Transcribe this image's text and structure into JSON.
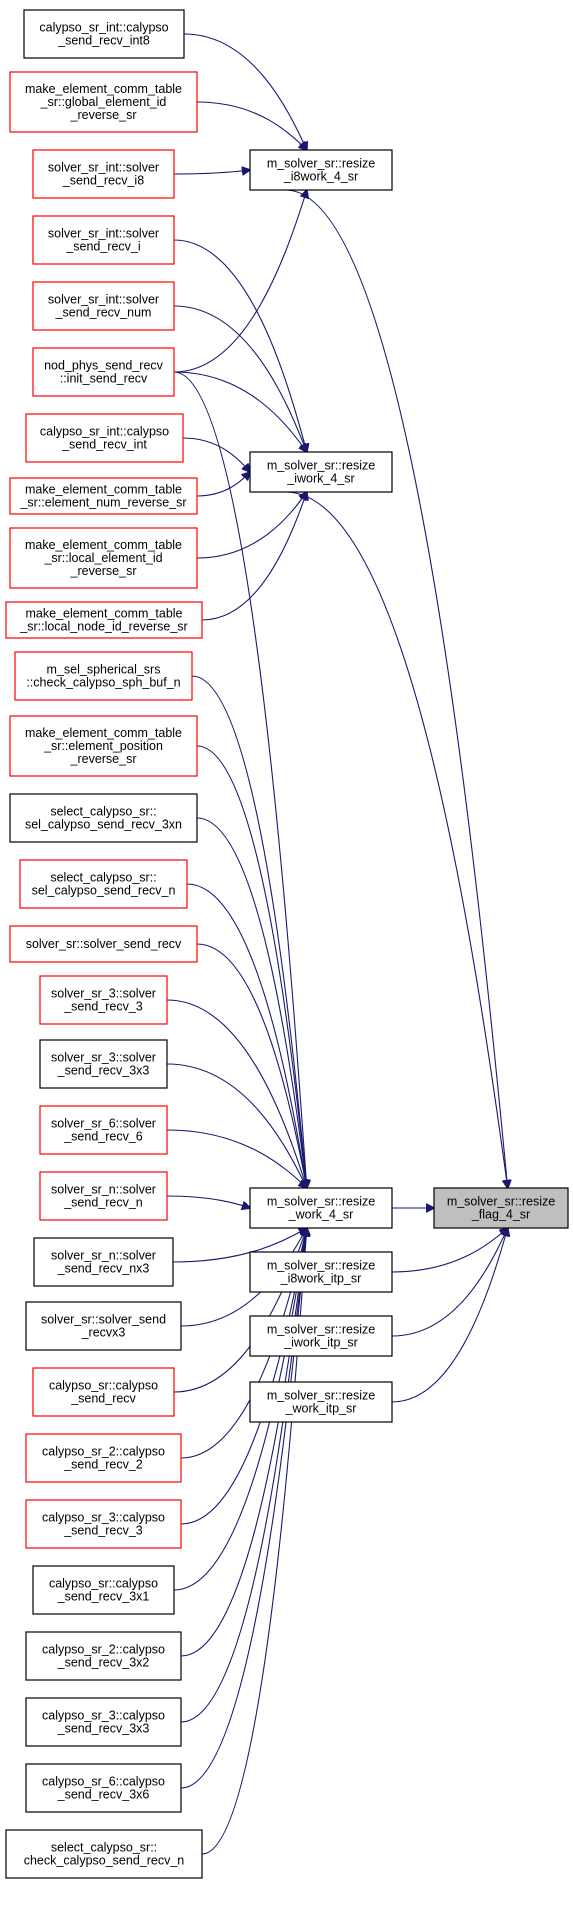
{
  "colors": {
    "edge": "#191970",
    "box_border_incomplete": "#ff0000",
    "box_border_complete": "#000000",
    "box_fill": "#ffffff",
    "target_fill": "#bfbfbf"
  },
  "nodes": [
    {
      "id": "n1",
      "lines": [
        "calypso_sr_int::calypso",
        "_send_recv_int8"
      ],
      "border": "black"
    },
    {
      "id": "n2",
      "lines": [
        "make_element_comm_table",
        "_sr::global_element_id",
        "_reverse_sr"
      ],
      "border": "red"
    },
    {
      "id": "n3",
      "lines": [
        "solver_sr_int::solver",
        "_send_recv_i8"
      ],
      "border": "red"
    },
    {
      "id": "n4",
      "lines": [
        "solver_sr_int::solver",
        "_send_recv_i"
      ],
      "border": "red"
    },
    {
      "id": "n5",
      "lines": [
        "solver_sr_int::solver",
        "_send_recv_num"
      ],
      "border": "red"
    },
    {
      "id": "n6",
      "lines": [
        "nod_phys_send_recv",
        "::init_send_recv"
      ],
      "border": "red"
    },
    {
      "id": "n7",
      "lines": [
        "calypso_sr_int::calypso",
        "_send_recv_int"
      ],
      "border": "red"
    },
    {
      "id": "n8",
      "lines": [
        "make_element_comm_table",
        "_sr::element_num_reverse_sr"
      ],
      "border": "red"
    },
    {
      "id": "n9",
      "lines": [
        "make_element_comm_table",
        "_sr::local_element_id",
        "_reverse_sr"
      ],
      "border": "red"
    },
    {
      "id": "n10",
      "lines": [
        "make_element_comm_table",
        "_sr::local_node_id_reverse_sr"
      ],
      "border": "red"
    },
    {
      "id": "n11",
      "lines": [
        "m_sel_spherical_srs",
        "::check_calypso_sph_buf_n"
      ],
      "border": "red"
    },
    {
      "id": "n12",
      "lines": [
        "make_element_comm_table",
        "_sr::element_position",
        "_reverse_sr"
      ],
      "border": "red"
    },
    {
      "id": "n13",
      "lines": [
        "select_calypso_sr::",
        "sel_calypso_send_recv_3xn"
      ],
      "border": "black"
    },
    {
      "id": "n14",
      "lines": [
        "select_calypso_sr::",
        "sel_calypso_send_recv_n"
      ],
      "border": "red"
    },
    {
      "id": "n15",
      "lines": [
        "solver_sr::solver_send_recv"
      ],
      "border": "red"
    },
    {
      "id": "n16",
      "lines": [
        "solver_sr_3::solver",
        "_send_recv_3"
      ],
      "border": "red"
    },
    {
      "id": "n17",
      "lines": [
        "solver_sr_3::solver",
        "_send_recv_3x3"
      ],
      "border": "black"
    },
    {
      "id": "n18",
      "lines": [
        "solver_sr_6::solver",
        "_send_recv_6"
      ],
      "border": "red"
    },
    {
      "id": "n19",
      "lines": [
        "solver_sr_n::solver",
        "_send_recv_n"
      ],
      "border": "red"
    },
    {
      "id": "n20",
      "lines": [
        "solver_sr_n::solver",
        "_send_recv_nx3"
      ],
      "border": "black"
    },
    {
      "id": "n21",
      "lines": [
        "solver_sr::solver_send",
        "_recvx3"
      ],
      "border": "black"
    },
    {
      "id": "n22",
      "lines": [
        "calypso_sr::calypso",
        "_send_recv"
      ],
      "border": "red"
    },
    {
      "id": "n23",
      "lines": [
        "calypso_sr_2::calypso",
        "_send_recv_2"
      ],
      "border": "red"
    },
    {
      "id": "n24",
      "lines": [
        "calypso_sr_3::calypso",
        "_send_recv_3"
      ],
      "border": "red"
    },
    {
      "id": "n25",
      "lines": [
        "calypso_sr::calypso",
        "_send_recv_3x1"
      ],
      "border": "black"
    },
    {
      "id": "n26",
      "lines": [
        "calypso_sr_2::calypso",
        "_send_recv_3x2"
      ],
      "border": "black"
    },
    {
      "id": "n27",
      "lines": [
        "calypso_sr_3::calypso",
        "_send_recv_3x3"
      ],
      "border": "black"
    },
    {
      "id": "n28",
      "lines": [
        "calypso_sr_6::calypso",
        "_send_recv_3x6"
      ],
      "border": "black"
    },
    {
      "id": "n29",
      "lines": [
        "select_calypso_sr::",
        "check_calypso_send_recv_n"
      ],
      "border": "black"
    },
    {
      "id": "m1",
      "lines": [
        "m_solver_sr::resize",
        "_i8work_4_sr"
      ],
      "border": "black"
    },
    {
      "id": "m2",
      "lines": [
        "m_solver_sr::resize",
        "_iwork_4_sr"
      ],
      "border": "black"
    },
    {
      "id": "m3",
      "lines": [
        "m_solver_sr::resize",
        "_work_4_sr"
      ],
      "border": "black"
    },
    {
      "id": "m4",
      "lines": [
        "m_solver_sr::resize",
        "_i8work_itp_sr"
      ],
      "border": "black"
    },
    {
      "id": "m5",
      "lines": [
        "m_solver_sr::resize",
        "_iwork_itp_sr"
      ],
      "border": "black"
    },
    {
      "id": "m6",
      "lines": [
        "m_solver_sr::resize",
        "_work_itp_sr"
      ],
      "border": "black"
    },
    {
      "id": "t",
      "lines": [
        "m_solver_sr::resize",
        "_flag_4_sr"
      ],
      "border": "black",
      "highlight": true
    }
  ],
  "edges": [
    {
      "from": "n1",
      "to": "m1"
    },
    {
      "from": "n2",
      "to": "m1"
    },
    {
      "from": "n3",
      "to": "m1"
    },
    {
      "from": "n6",
      "to": "m1"
    },
    {
      "from": "n4",
      "to": "m2"
    },
    {
      "from": "n5",
      "to": "m2"
    },
    {
      "from": "n6",
      "to": "m2"
    },
    {
      "from": "n7",
      "to": "m2"
    },
    {
      "from": "n8",
      "to": "m2"
    },
    {
      "from": "n9",
      "to": "m2"
    },
    {
      "from": "n10",
      "to": "m2"
    },
    {
      "from": "n6",
      "to": "m3"
    },
    {
      "from": "n11",
      "to": "m3"
    },
    {
      "from": "n12",
      "to": "m3"
    },
    {
      "from": "n13",
      "to": "m3"
    },
    {
      "from": "n14",
      "to": "m3"
    },
    {
      "from": "n15",
      "to": "m3"
    },
    {
      "from": "n16",
      "to": "m3"
    },
    {
      "from": "n17",
      "to": "m3"
    },
    {
      "from": "n18",
      "to": "m3"
    },
    {
      "from": "n19",
      "to": "m3"
    },
    {
      "from": "n20",
      "to": "m3"
    },
    {
      "from": "n21",
      "to": "m3"
    },
    {
      "from": "n22",
      "to": "m3"
    },
    {
      "from": "n23",
      "to": "m3"
    },
    {
      "from": "n24",
      "to": "m3"
    },
    {
      "from": "n25",
      "to": "m3"
    },
    {
      "from": "n26",
      "to": "m3"
    },
    {
      "from": "n27",
      "to": "m3"
    },
    {
      "from": "n28",
      "to": "m3"
    },
    {
      "from": "n29",
      "to": "m3"
    },
    {
      "from": "m1",
      "to": "t"
    },
    {
      "from": "m2",
      "to": "t"
    },
    {
      "from": "m3",
      "to": "t"
    },
    {
      "from": "m4",
      "to": "t"
    },
    {
      "from": "m5",
      "to": "t"
    },
    {
      "from": "m6",
      "to": "t"
    }
  ]
}
